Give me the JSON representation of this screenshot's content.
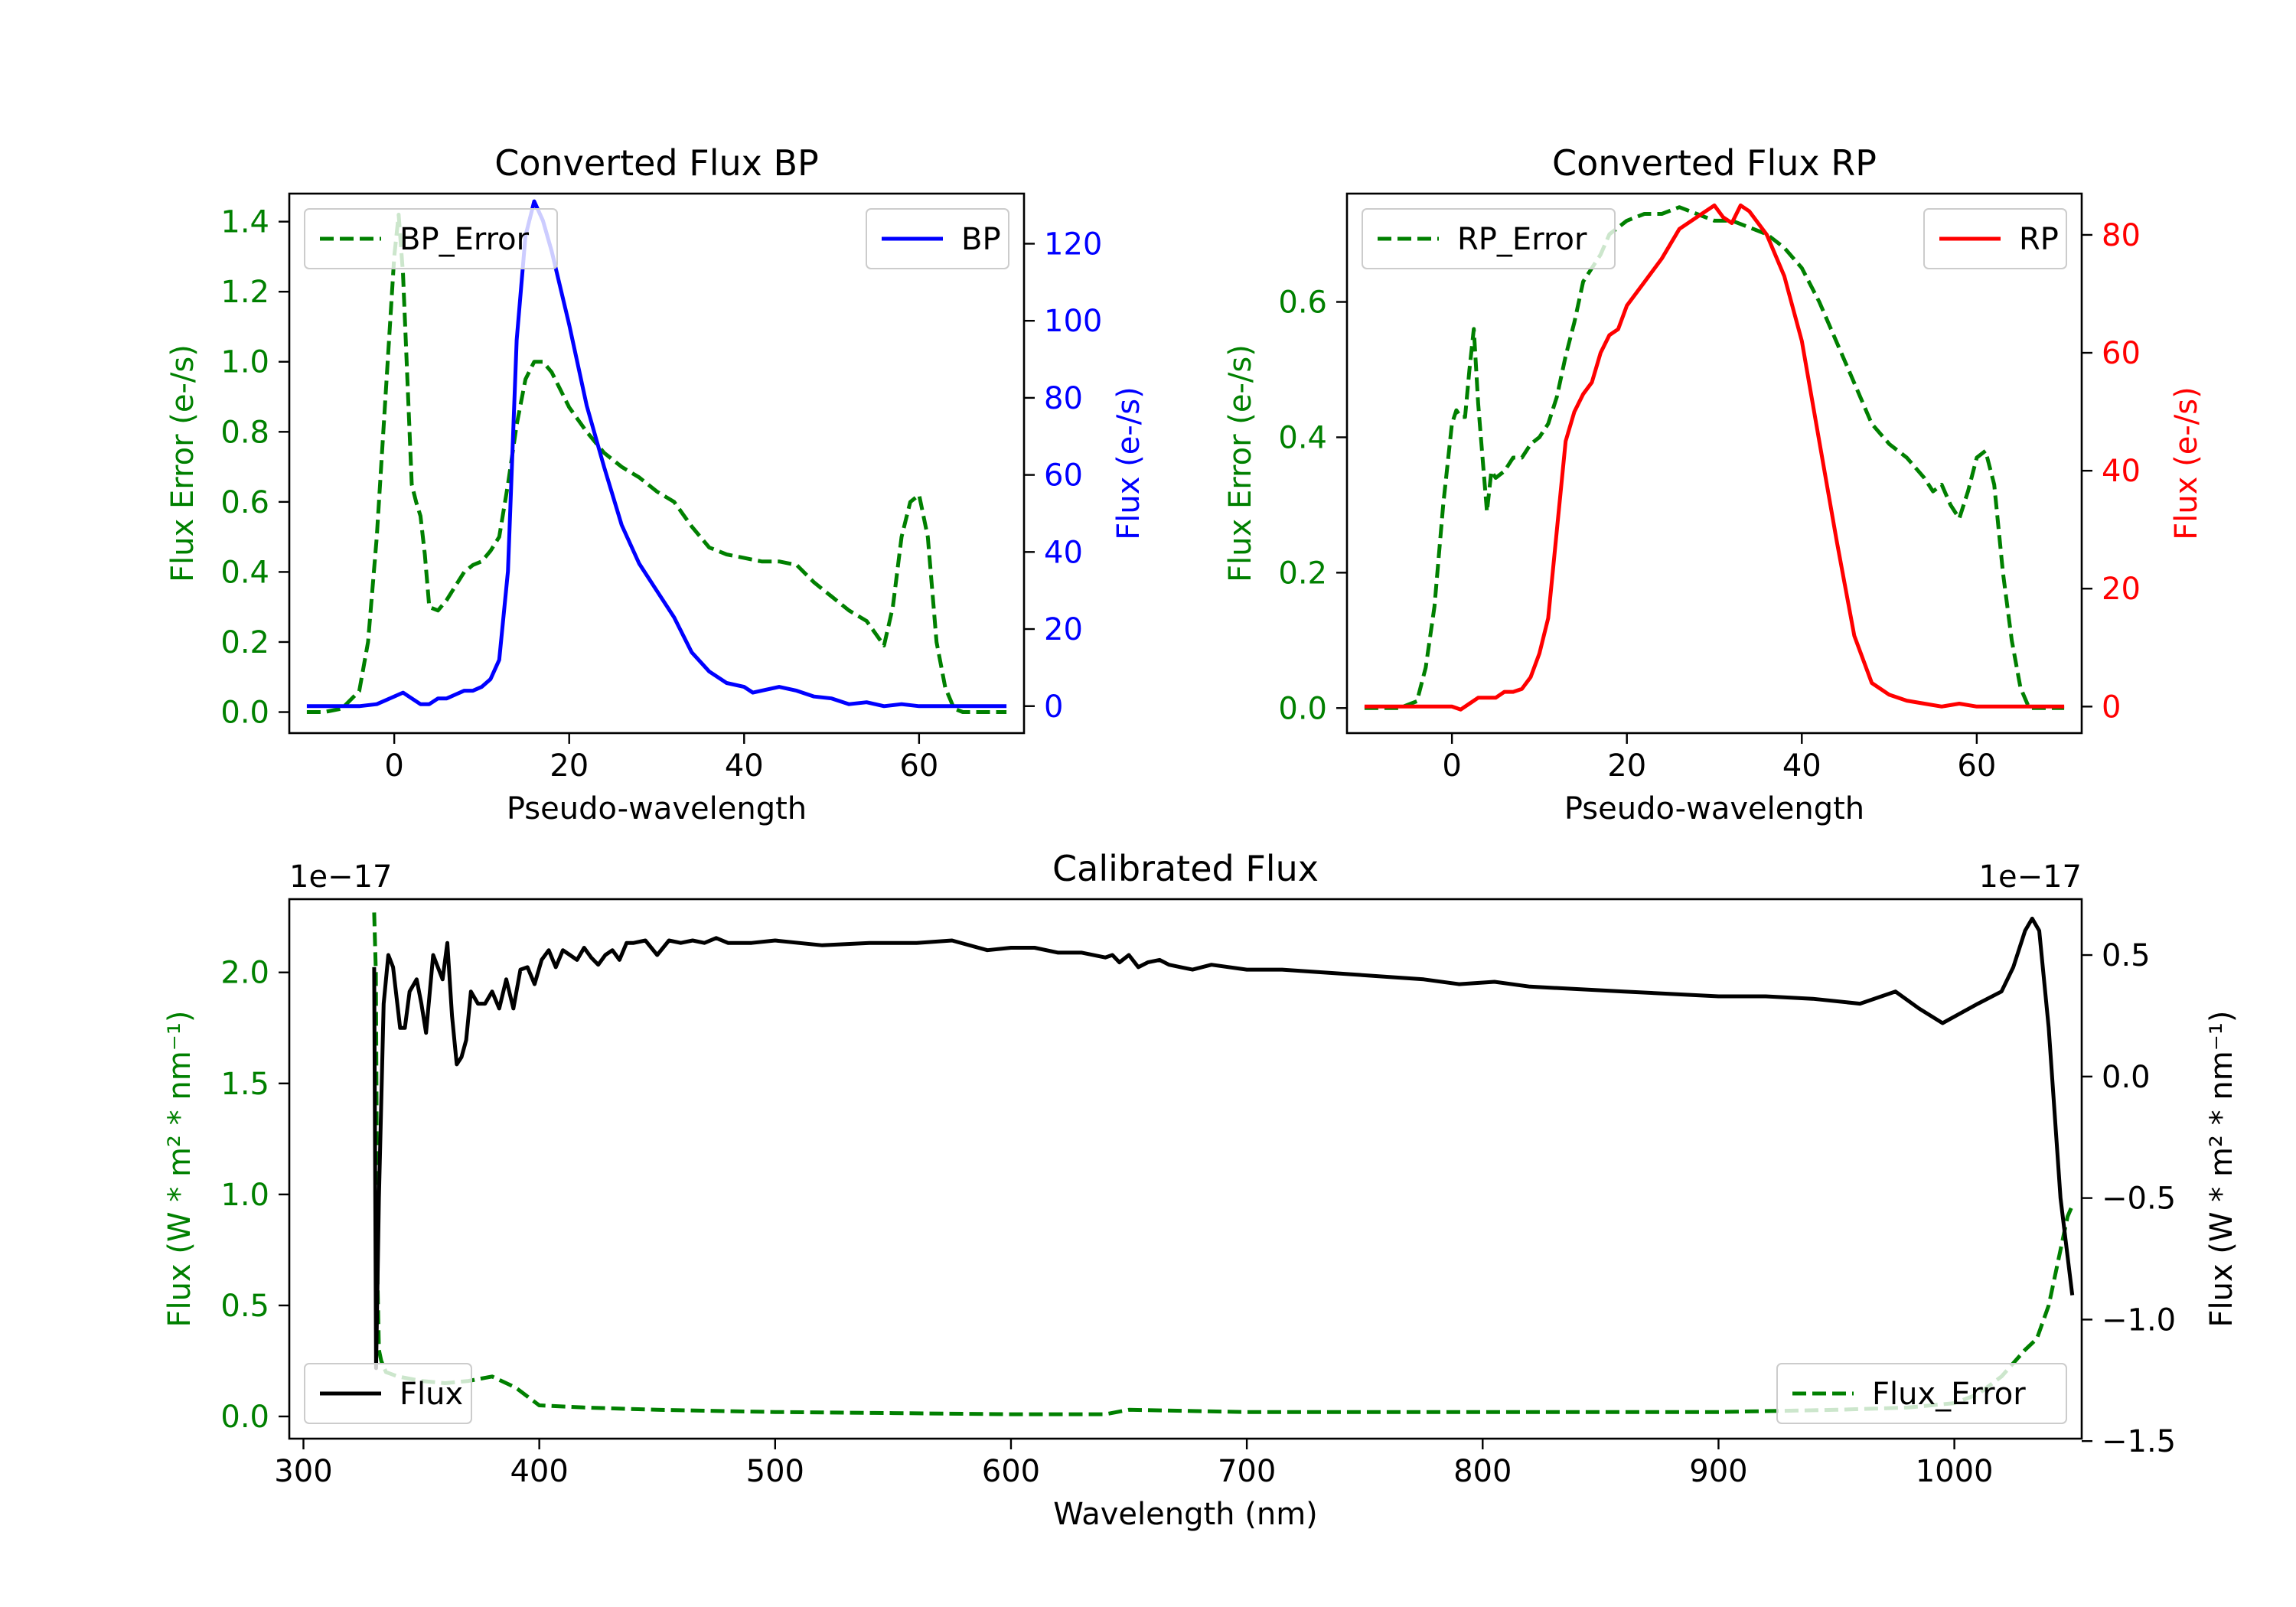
{
  "chart_data": [
    {
      "type": "line",
      "title": "Converted Flux BP",
      "xlabel": "Pseudo-wavelength",
      "ylabel_left": "Flux Error (e-/s)",
      "ylabel_right": "Flux (e-/s)",
      "xlim": [
        -12,
        72
      ],
      "ylim_left": [
        -0.06,
        1.48
      ],
      "ylim_right": [
        -7,
        133
      ],
      "xticks": [
        "0",
        "20",
        "40",
        "60"
      ],
      "yticks_left": [
        "0.0",
        "0.2",
        "0.4",
        "0.6",
        "0.8",
        "1.0",
        "1.2",
        "1.4"
      ],
      "yticks_right": [
        "0",
        "20",
        "40",
        "60",
        "80",
        "100",
        "120"
      ],
      "legend_left": "BP_Error",
      "legend_right": "BP",
      "colors": {
        "error": "#008000",
        "flux": "#0000ff",
        "left_axis": "#008000",
        "right_axis": "#0000ff"
      },
      "series": [
        {
          "name": "BP_Error",
          "axis": "left",
          "style": "dashed",
          "x": [
            -10,
            -8,
            -6,
            -4,
            -3,
            -2,
            -1,
            0,
            0.5,
            1,
            1.5,
            2,
            2.5,
            3,
            3.5,
            4,
            5,
            6,
            7,
            8,
            9,
            10,
            11,
            12,
            13,
            14,
            15,
            16,
            17,
            18,
            20,
            22,
            24,
            26,
            28,
            30,
            32,
            34,
            36,
            38,
            40,
            42,
            44,
            46,
            48,
            50,
            52,
            54,
            56,
            57,
            58,
            59,
            60,
            61,
            62,
            63,
            64,
            65,
            66,
            68,
            70
          ],
          "y": [
            0.0,
            0.0,
            0.01,
            0.06,
            0.2,
            0.5,
            0.9,
            1.3,
            1.42,
            1.25,
            0.95,
            0.65,
            0.6,
            0.56,
            0.45,
            0.3,
            0.29,
            0.32,
            0.36,
            0.4,
            0.42,
            0.43,
            0.46,
            0.5,
            0.65,
            0.82,
            0.95,
            1.0,
            1.0,
            0.97,
            0.87,
            0.8,
            0.74,
            0.7,
            0.67,
            0.63,
            0.6,
            0.53,
            0.47,
            0.45,
            0.44,
            0.43,
            0.43,
            0.42,
            0.37,
            0.33,
            0.29,
            0.26,
            0.19,
            0.3,
            0.5,
            0.6,
            0.62,
            0.5,
            0.2,
            0.07,
            0.01,
            0.0,
            0.0,
            0.0,
            0.0
          ]
        },
        {
          "name": "BP",
          "axis": "right",
          "style": "solid",
          "x": [
            -10,
            -6,
            -4,
            -2,
            0,
            1,
            2,
            3,
            4,
            5,
            6,
            7,
            8,
            9,
            10,
            11,
            12,
            13,
            14,
            15,
            16,
            17,
            18,
            20,
            22,
            24,
            26,
            28,
            30,
            32,
            34,
            36,
            38,
            40,
            41,
            42,
            44,
            46,
            48,
            50,
            52,
            54,
            56,
            58,
            60,
            62,
            64,
            66,
            68,
            70
          ],
          "y": [
            0,
            0,
            0,
            0.5,
            2.5,
            3.5,
            2,
            0.5,
            0.5,
            2,
            2,
            3,
            4,
            4,
            5,
            7,
            12,
            35,
            95,
            122,
            131,
            126,
            118,
            99,
            78,
            62,
            47,
            37,
            30,
            23,
            14,
            9,
            6,
            5,
            3.5,
            4,
            5,
            4,
            2.5,
            2,
            0.5,
            1,
            0,
            0.5,
            0,
            0,
            0,
            0,
            0,
            0
          ]
        }
      ]
    },
    {
      "type": "line",
      "title": "Converted Flux RP",
      "xlabel": "Pseudo-wavelength",
      "ylabel_left": "Flux Error (e-/s)",
      "ylabel_right": "Flux (e-/s)",
      "xlim": [
        -12,
        72
      ],
      "ylim_left": [
        -0.037,
        0.76
      ],
      "ylim_right": [
        -4.5,
        87
      ],
      "xticks": [
        "0",
        "20",
        "40",
        "60"
      ],
      "yticks_left": [
        "0.0",
        "0.2",
        "0.4",
        "0.6"
      ],
      "yticks_right": [
        "0",
        "20",
        "40",
        "60",
        "80"
      ],
      "legend_left": "RP_Error",
      "legend_right": "RP",
      "colors": {
        "error": "#008000",
        "flux": "#ff0000",
        "left_axis": "#008000",
        "right_axis": "#ff0000"
      },
      "series": [
        {
          "name": "RP_Error",
          "axis": "left",
          "style": "dashed",
          "x": [
            -10,
            -6,
            -4,
            -3,
            -2,
            -1,
            0,
            0.5,
            1,
            1.5,
            2,
            2.5,
            3,
            3.5,
            4,
            4.5,
            5,
            6,
            7,
            8,
            9,
            10,
            11,
            12,
            13,
            14,
            15,
            16,
            17,
            18,
            20,
            22,
            24,
            26,
            28,
            30,
            32,
            34,
            36,
            38,
            40,
            42,
            44,
            46,
            48,
            50,
            52,
            54,
            55,
            56,
            57,
            58,
            59,
            60,
            61,
            62,
            63,
            64,
            65,
            66,
            68,
            70
          ],
          "y": [
            0.0,
            0.0,
            0.01,
            0.06,
            0.15,
            0.3,
            0.42,
            0.44,
            0.43,
            0.43,
            0.5,
            0.56,
            0.45,
            0.37,
            0.29,
            0.35,
            0.34,
            0.35,
            0.37,
            0.37,
            0.39,
            0.4,
            0.42,
            0.46,
            0.52,
            0.57,
            0.63,
            0.65,
            0.67,
            0.7,
            0.72,
            0.73,
            0.73,
            0.74,
            0.73,
            0.72,
            0.72,
            0.71,
            0.7,
            0.68,
            0.65,
            0.6,
            0.54,
            0.48,
            0.42,
            0.39,
            0.37,
            0.34,
            0.32,
            0.33,
            0.3,
            0.28,
            0.32,
            0.37,
            0.38,
            0.33,
            0.2,
            0.1,
            0.03,
            0.0,
            0.0,
            0.0
          ]
        },
        {
          "name": "RP",
          "axis": "right",
          "style": "solid",
          "x": [
            -10,
            -6,
            -4,
            -2,
            0,
            1,
            2,
            3,
            4,
            5,
            6,
            7,
            8,
            9,
            10,
            11,
            12,
            13,
            14,
            15,
            16,
            17,
            18,
            19,
            20,
            22,
            24,
            26,
            28,
            29,
            30,
            31,
            32,
            33,
            34,
            36,
            38,
            40,
            42,
            44,
            46,
            48,
            50,
            52,
            54,
            56,
            58,
            60,
            62,
            64,
            66,
            68,
            70
          ],
          "y": [
            0,
            0,
            0,
            0,
            0,
            -0.5,
            0.5,
            1.5,
            1.5,
            1.5,
            2.5,
            2.5,
            3,
            5,
            9,
            15,
            30,
            45,
            50,
            53,
            55,
            60,
            63,
            64,
            68,
            72,
            76,
            81,
            83,
            84,
            85,
            83,
            82,
            85,
            84,
            80,
            73,
            62,
            45,
            28,
            12,
            4,
            2,
            1,
            0.5,
            0,
            0.5,
            0,
            0,
            0,
            0,
            0,
            0
          ]
        }
      ]
    },
    {
      "type": "line",
      "title": "Calibrated Flux",
      "xlabel": "Wavelength (nm)",
      "ylabel_left": "Flux (W * m² * nm⁻¹)",
      "ylabel_right": "Flux (W * m² * nm⁻¹)",
      "xlim": [
        294,
        1054
      ],
      "ylim_left": [
        -0.1,
        2.33
      ],
      "ylim_right": [
        -1.49,
        0.73
      ],
      "scale_note_left": "1e−17",
      "scale_note_right": "1e−17",
      "xticks": [
        "300",
        "400",
        "500",
        "600",
        "700",
        "800",
        "900",
        "1000"
      ],
      "yticks_left": [
        "0.0",
        "0.5",
        "1.0",
        "1.5",
        "2.0"
      ],
      "yticks_right": [
        "−1.5",
        "−1.0",
        "−0.5",
        "0.0",
        "0.5"
      ],
      "legend_left": "Flux",
      "legend_right": "Flux_Error",
      "colors": {
        "error": "#008000",
        "flux": "#000000",
        "left_axis": "#008000",
        "right_axis": "#000000"
      },
      "series": [
        {
          "name": "Flux_Error",
          "axis": "left",
          "style": "dashed",
          "x": [
            330,
            330.7,
            331.4,
            332,
            333,
            335,
            340,
            350,
            360,
            370,
            380,
            390,
            400,
            420,
            450,
            500,
            550,
            600,
            640,
            650,
            700,
            800,
            900,
            950,
            980,
            1000,
            1010,
            1020,
            1030,
            1035,
            1040,
            1045,
            1048,
            1050
          ],
          "y": [
            2.27,
            2.0,
            0.6,
            0.3,
            0.25,
            0.2,
            0.18,
            0.16,
            0.15,
            0.16,
            0.18,
            0.13,
            0.05,
            0.04,
            0.03,
            0.02,
            0.015,
            0.01,
            0.01,
            0.03,
            0.02,
            0.02,
            0.02,
            0.03,
            0.04,
            0.06,
            0.1,
            0.18,
            0.3,
            0.35,
            0.5,
            0.75,
            0.9,
            0.95
          ]
        },
        {
          "name": "Flux",
          "axis": "right",
          "style": "solid",
          "x": [
            330,
            330.8,
            332,
            334,
            336,
            338,
            341,
            343,
            345,
            348,
            350,
            352,
            355,
            357,
            359,
            361,
            363,
            365,
            367,
            369,
            371,
            374,
            377,
            380,
            383,
            386,
            389,
            392,
            395,
            398,
            401,
            404,
            407,
            410,
            413,
            416,
            419,
            422,
            425,
            428,
            431,
            434,
            437,
            440,
            445,
            450,
            455,
            460,
            465,
            470,
            475,
            480,
            490,
            500,
            520,
            540,
            560,
            575,
            590,
            600,
            610,
            620,
            630,
            640,
            643,
            646,
            650,
            654,
            658,
            663,
            667,
            672,
            677,
            685,
            700,
            715,
            730,
            745,
            760,
            775,
            790,
            805,
            820,
            840,
            860,
            880,
            900,
            920,
            940,
            960,
            975,
            985,
            995,
            1010,
            1020,
            1025,
            1030,
            1033,
            1036,
            1040,
            1045,
            1050
          ],
          "y": [
            0.45,
            -1.2,
            -0.5,
            0.3,
            0.5,
            0.45,
            0.2,
            0.2,
            0.35,
            0.4,
            0.3,
            0.18,
            0.5,
            0.45,
            0.4,
            0.55,
            0.25,
            0.05,
            0.08,
            0.15,
            0.35,
            0.3,
            0.3,
            0.35,
            0.28,
            0.4,
            0.28,
            0.44,
            0.45,
            0.38,
            0.48,
            0.52,
            0.45,
            0.52,
            0.5,
            0.48,
            0.53,
            0.49,
            0.46,
            0.5,
            0.52,
            0.48,
            0.55,
            0.55,
            0.56,
            0.5,
            0.56,
            0.55,
            0.56,
            0.55,
            0.57,
            0.55,
            0.55,
            0.56,
            0.54,
            0.55,
            0.55,
            0.56,
            0.52,
            0.53,
            0.53,
            0.51,
            0.51,
            0.49,
            0.5,
            0.47,
            0.5,
            0.45,
            0.47,
            0.48,
            0.46,
            0.45,
            0.44,
            0.46,
            0.44,
            0.44,
            0.43,
            0.42,
            0.41,
            0.4,
            0.38,
            0.39,
            0.37,
            0.36,
            0.35,
            0.34,
            0.33,
            0.33,
            0.32,
            0.3,
            0.35,
            0.28,
            0.22,
            0.3,
            0.35,
            0.45,
            0.6,
            0.65,
            0.6,
            0.2,
            -0.5,
            -0.9
          ]
        }
      ]
    }
  ]
}
